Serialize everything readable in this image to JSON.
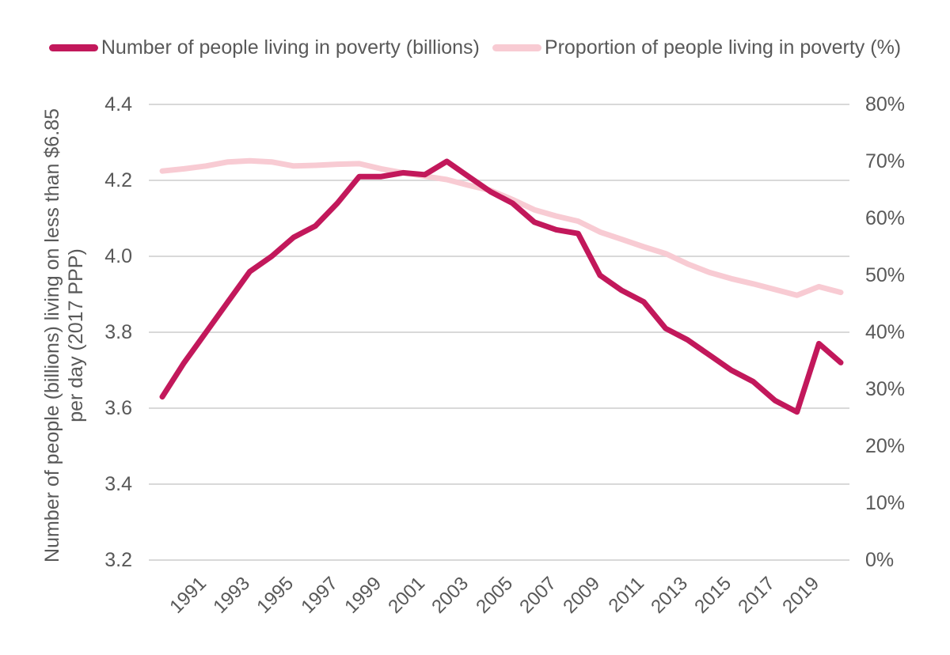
{
  "legend": [
    {
      "label": "Number of people living in poverty (billions)",
      "color": "#C2185B"
    },
    {
      "label": "Proportion of people living in poverty (%)",
      "color": "#F8CBD3"
    }
  ],
  "chart_data": {
    "type": "line",
    "title": "",
    "x": [
      1990,
      1991,
      1992,
      1993,
      1994,
      1995,
      1996,
      1997,
      1998,
      1999,
      2000,
      2001,
      2002,
      2003,
      2004,
      2005,
      2006,
      2007,
      2008,
      2009,
      2010,
      2011,
      2012,
      2013,
      2014,
      2015,
      2016,
      2017,
      2018,
      2019,
      2020,
      2021
    ],
    "series": [
      {
        "name": "Number of people living in poverty (billions)",
        "axis": "left",
        "color": "#C2185B",
        "values": [
          3.63,
          3.72,
          3.8,
          3.88,
          3.96,
          4.0,
          4.05,
          4.08,
          4.14,
          4.21,
          4.21,
          4.22,
          4.215,
          4.25,
          4.21,
          4.17,
          4.14,
          4.09,
          4.07,
          4.06,
          3.95,
          3.91,
          3.88,
          3.81,
          3.78,
          3.74,
          3.7,
          3.67,
          3.62,
          3.59,
          3.77,
          3.72
        ]
      },
      {
        "name": "Proportion of people living in poverty (%)",
        "axis": "right",
        "color": "#F8CBD3",
        "values": [
          68.3,
          68.7,
          69.2,
          69.9,
          70.1,
          69.9,
          69.2,
          69.3,
          69.5,
          69.6,
          68.7,
          68.0,
          67.4,
          66.8,
          65.8,
          64.9,
          63.3,
          61.5,
          60.4,
          59.5,
          57.6,
          56.3,
          55.0,
          53.8,
          52.0,
          50.5,
          49.4,
          48.5,
          47.5,
          46.5,
          48.0,
          47.0
        ]
      }
    ],
    "left_axis": {
      "title": "Number of people (billions) living on less than $6.85 per day (2017 PPP)",
      "title_lines": [
        "Number of people (billions) living on less than $6.85",
        "per day (2017 PPP)"
      ],
      "ticks": [
        "4.4",
        "4.2",
        "4.0",
        "3.8",
        "3.6",
        "3.4",
        "3.2"
      ],
      "min": 3.2,
      "max": 4.4
    },
    "right_axis": {
      "ticks": [
        "80%",
        "70%",
        "60%",
        "50%",
        "40%",
        "30%",
        "20%",
        "10%",
        "0%"
      ],
      "min": 0,
      "max": 80
    },
    "x_axis": {
      "tick_labels": [
        "1991",
        "1993",
        "1995",
        "1997",
        "1999",
        "2001",
        "2003",
        "2005",
        "2007",
        "2009",
        "2011",
        "2013",
        "2015",
        "2017",
        "2019"
      ],
      "tick_years": [
        1991,
        1993,
        1995,
        1997,
        1999,
        2001,
        2003,
        2005,
        2007,
        2009,
        2011,
        2013,
        2015,
        2017,
        2019
      ]
    },
    "grid": "horizontal",
    "legend_position": "top",
    "colors": {
      "grid": "#D9D9D9",
      "text": "#595959",
      "background": "#FFFFFF"
    }
  }
}
